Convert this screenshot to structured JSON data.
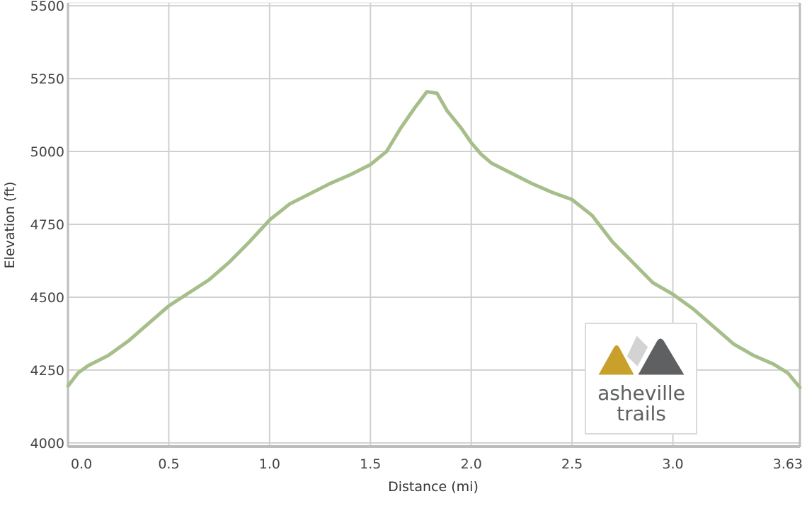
{
  "chart_data": {
    "type": "area",
    "title": "",
    "xlabel": "Distance (mi)",
    "ylabel": "Elevation (ft)",
    "xlim": [
      0,
      3.63
    ],
    "ylim": [
      3990,
      5510
    ],
    "x_ticks": [
      0,
      0.5,
      1.0,
      1.5,
      2.0,
      2.5,
      3.0,
      3.63
    ],
    "x_tick_labels": [
      "0.0",
      "0.5",
      "1.0",
      "1.5",
      "2.0",
      "2.5",
      "3.0",
      "3.63"
    ],
    "y_ticks": [
      4000,
      4250,
      4500,
      4750,
      5000,
      5250,
      5500
    ],
    "y_tick_labels": [
      "4000",
      "4250",
      "4500",
      "4750",
      "5000",
      "5250",
      "5500"
    ],
    "grid": true,
    "series": [
      {
        "color": "#a6bf8a",
        "x": [
          0,
          0.05,
          0.1,
          0.2,
          0.3,
          0.4,
          0.5,
          0.6,
          0.7,
          0.8,
          0.9,
          1.0,
          1.1,
          1.2,
          1.3,
          1.4,
          1.5,
          1.58,
          1.65,
          1.72,
          1.78,
          1.83,
          1.88,
          1.95,
          2.0,
          2.05,
          2.1,
          2.2,
          2.3,
          2.4,
          2.5,
          2.6,
          2.7,
          2.8,
          2.9,
          3.0,
          3.1,
          3.2,
          3.3,
          3.4,
          3.5,
          3.57,
          3.63
        ],
        "y": [
          4195,
          4240,
          4265,
          4300,
          4350,
          4410,
          4470,
          4515,
          4560,
          4620,
          4690,
          4765,
          4820,
          4855,
          4890,
          4920,
          4955,
          5000,
          5080,
          5150,
          5205,
          5200,
          5140,
          5080,
          5030,
          4990,
          4960,
          4925,
          4890,
          4860,
          4835,
          4780,
          4690,
          4620,
          4550,
          4510,
          4460,
          4400,
          4340,
          4300,
          4270,
          4240,
          4190
        ]
      }
    ]
  },
  "logo": {
    "line1": "asheville",
    "line2": "trails",
    "colors": {
      "gold": "#c9a02b",
      "light_gray": "#d3d3d3",
      "dark_gray": "#5e6061",
      "border": "#d9d9d9"
    }
  }
}
